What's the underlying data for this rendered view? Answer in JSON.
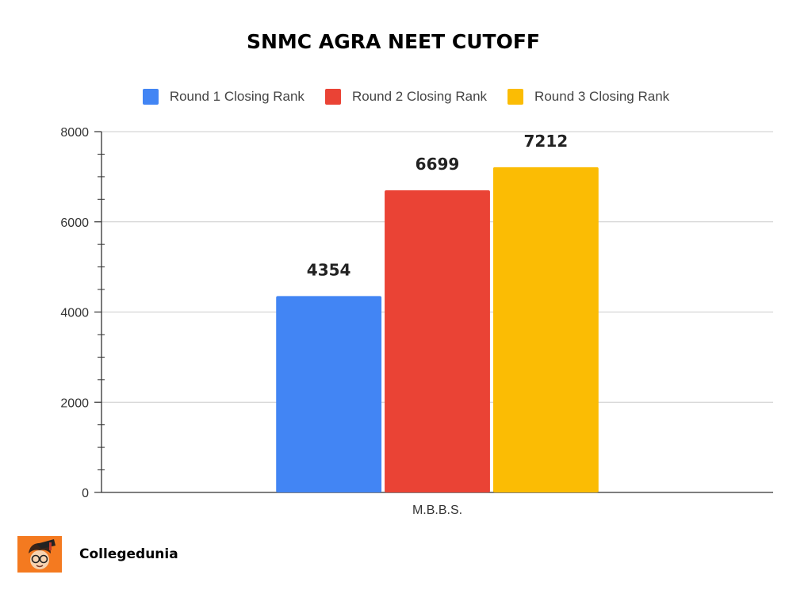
{
  "chart_data": {
    "type": "bar",
    "title": "SNMC AGRA NEET CUTOFF",
    "xlabel": "",
    "ylabel": "",
    "categories": [
      "M.B.B.S."
    ],
    "series": [
      {
        "name": "Round 1 Closing Rank",
        "values": [
          4354
        ],
        "color": "#4285f4"
      },
      {
        "name": "Round 2 Closing Rank",
        "values": [
          6699
        ],
        "color": "#ea4335"
      },
      {
        "name": "Round 3 Closing Rank",
        "values": [
          7212
        ],
        "color": "#fbbc04"
      }
    ],
    "ylim": [
      0,
      8000
    ],
    "yticks": [
      0,
      2000,
      4000,
      6000,
      8000
    ],
    "grid": true,
    "legend_position": "top",
    "data_labels": true
  },
  "brand": {
    "name": "Collegedunia",
    "logo_icon": "student-mascot-icon",
    "logo_color": "#f47a20"
  }
}
